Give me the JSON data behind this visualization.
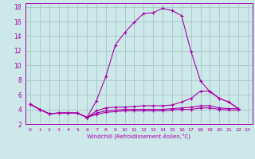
{
  "xlabel": "Windchill (Refroidissement éolien,°C)",
  "bg_color": "#cce8e8",
  "line_color": "#aa00aa",
  "grid_color": "#aacccc",
  "xlim": [
    -0.5,
    23.5
  ],
  "ylim": [
    2,
    18.5
  ],
  "xticks": [
    0,
    1,
    2,
    3,
    4,
    5,
    6,
    7,
    8,
    9,
    10,
    11,
    12,
    13,
    14,
    15,
    16,
    17,
    18,
    19,
    20,
    21,
    22,
    23
  ],
  "yticks": [
    2,
    4,
    6,
    8,
    10,
    12,
    14,
    16,
    18
  ],
  "series": [
    {
      "x": [
        0,
        1,
        2,
        3,
        4,
        5,
        6,
        7,
        8,
        9,
        10,
        11,
        12,
        13,
        14,
        15,
        16,
        17,
        18,
        19,
        20,
        21,
        22
      ],
      "y": [
        4.7,
        4.0,
        3.4,
        3.5,
        3.5,
        3.5,
        2.9,
        5.2,
        8.5,
        12.8,
        14.5,
        15.9,
        17.1,
        17.2,
        17.8,
        17.5,
        16.8,
        11.9,
        7.9,
        6.4,
        5.5,
        5.0,
        4.1
      ]
    },
    {
      "x": [
        0,
        1,
        2,
        3,
        4,
        5,
        6,
        7,
        8,
        9,
        10,
        11,
        12,
        13,
        14,
        15,
        16,
        17,
        18,
        19,
        20,
        21,
        22
      ],
      "y": [
        4.7,
        4.0,
        3.4,
        3.5,
        3.5,
        3.5,
        2.9,
        3.8,
        4.2,
        4.3,
        4.3,
        4.4,
        4.5,
        4.5,
        4.5,
        4.6,
        5.0,
        5.5,
        6.5,
        6.5,
        5.5,
        5.0,
        4.1
      ]
    },
    {
      "x": [
        0,
        1,
        2,
        3,
        4,
        5,
        6,
        7,
        8,
        9,
        10,
        11,
        12,
        13,
        14,
        15,
        16,
        17,
        18,
        19,
        20,
        21,
        22
      ],
      "y": [
        4.7,
        4.0,
        3.4,
        3.5,
        3.5,
        3.5,
        2.9,
        3.5,
        3.8,
        3.9,
        4.0,
        4.0,
        4.0,
        4.0,
        4.0,
        4.1,
        4.2,
        4.3,
        4.5,
        4.5,
        4.2,
        4.1,
        4.1
      ]
    },
    {
      "x": [
        0,
        1,
        2,
        3,
        4,
        5,
        6,
        7,
        8,
        9,
        10,
        11,
        12,
        13,
        14,
        15,
        16,
        17,
        18,
        19,
        20,
        21,
        22
      ],
      "y": [
        4.7,
        4.0,
        3.4,
        3.5,
        3.5,
        3.5,
        2.9,
        3.3,
        3.6,
        3.7,
        3.8,
        3.8,
        3.8,
        3.8,
        3.8,
        3.9,
        4.0,
        4.0,
        4.2,
        4.2,
        4.0,
        3.9,
        3.9
      ]
    }
  ]
}
